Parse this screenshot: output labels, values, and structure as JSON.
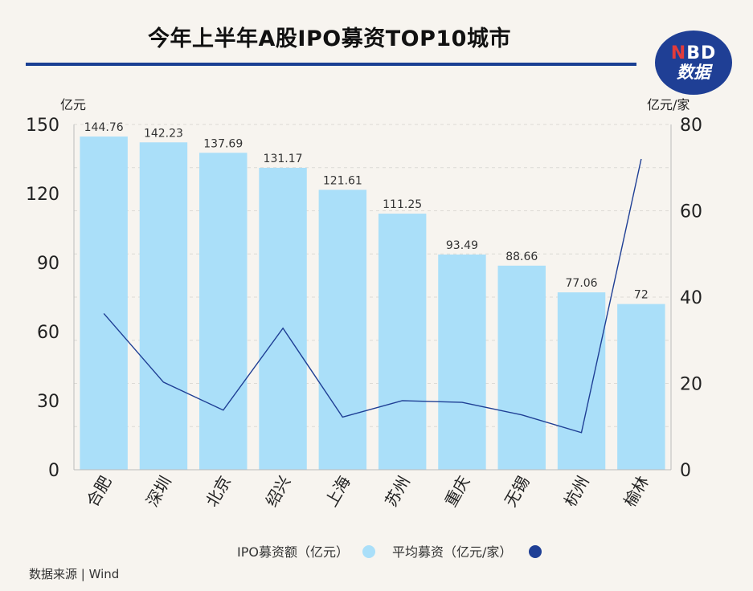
{
  "chart_data": {
    "type": "bar",
    "title": "今年上半年A股IPO募资TOP10城市",
    "categories": [
      "合肥",
      "深圳",
      "北京",
      "绍兴",
      "上海",
      "苏州",
      "重庆",
      "无锡",
      "杭州",
      "榆林"
    ],
    "series": [
      {
        "name": "IPO募资额（亿元）",
        "type": "bar",
        "axis": "left",
        "color": "#aadff9",
        "values": [
          144.76,
          142.23,
          137.69,
          131.17,
          121.61,
          111.25,
          93.49,
          88.66,
          77.06,
          72
        ],
        "labels": [
          "144.76",
          "142.23",
          "137.69",
          "131.17",
          "121.61",
          "111.25",
          "93.49",
          "88.66",
          "77.06",
          "72"
        ]
      },
      {
        "name": "平均募资（亿元/家）",
        "type": "line",
        "axis": "right",
        "color": "#1f3f95",
        "values": [
          36.2,
          20.3,
          13.8,
          32.8,
          12.2,
          16.0,
          15.6,
          12.7,
          8.6,
          72.0
        ]
      }
    ],
    "y_left": {
      "unit": "亿元",
      "range": [
        0,
        150
      ],
      "ticks": [
        "0",
        "30",
        "60",
        "90",
        "120",
        "150"
      ]
    },
    "y_right": {
      "unit": "亿元/家",
      "range": [
        0,
        80
      ],
      "ticks": [
        "0",
        "20",
        "40",
        "60",
        "80"
      ]
    },
    "grid": "dashed-horizontal",
    "legend_position": "bottom-center"
  },
  "source_text": "数据来源 | Wind",
  "logo": {
    "line1": "NBD",
    "line2": "数据"
  }
}
